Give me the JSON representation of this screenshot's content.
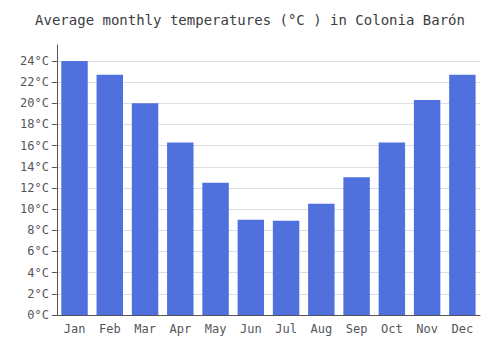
{
  "chart_data": {
    "type": "bar",
    "title": "Average monthly temperatures (°C ) in Colonia Barón",
    "categories": [
      "Jan",
      "Feb",
      "Mar",
      "Apr",
      "May",
      "Jun",
      "Jul",
      "Aug",
      "Sep",
      "Oct",
      "Nov",
      "Dec"
    ],
    "values": [
      24.0,
      22.7,
      20.0,
      16.3,
      12.5,
      9.0,
      8.9,
      10.5,
      13.0,
      16.3,
      20.3,
      22.7
    ],
    "ylim": [
      0,
      25.5
    ],
    "yticks": [
      {
        "value": 0,
        "label": "0°C"
      },
      {
        "value": 2,
        "label": "2°C"
      },
      {
        "value": 4,
        "label": "4°C"
      },
      {
        "value": 6,
        "label": "6°C"
      },
      {
        "value": 8,
        "label": "8°C"
      },
      {
        "value": 10,
        "label": "10°C"
      },
      {
        "value": 12,
        "label": "12°C"
      },
      {
        "value": 14,
        "label": "14°C"
      },
      {
        "value": 16,
        "label": "16°C"
      },
      {
        "value": 18,
        "label": "18°C"
      },
      {
        "value": 20,
        "label": "20°C"
      },
      {
        "value": 22,
        "label": "22°C"
      },
      {
        "value": 24,
        "label": "24°C"
      }
    ],
    "grid": true
  }
}
